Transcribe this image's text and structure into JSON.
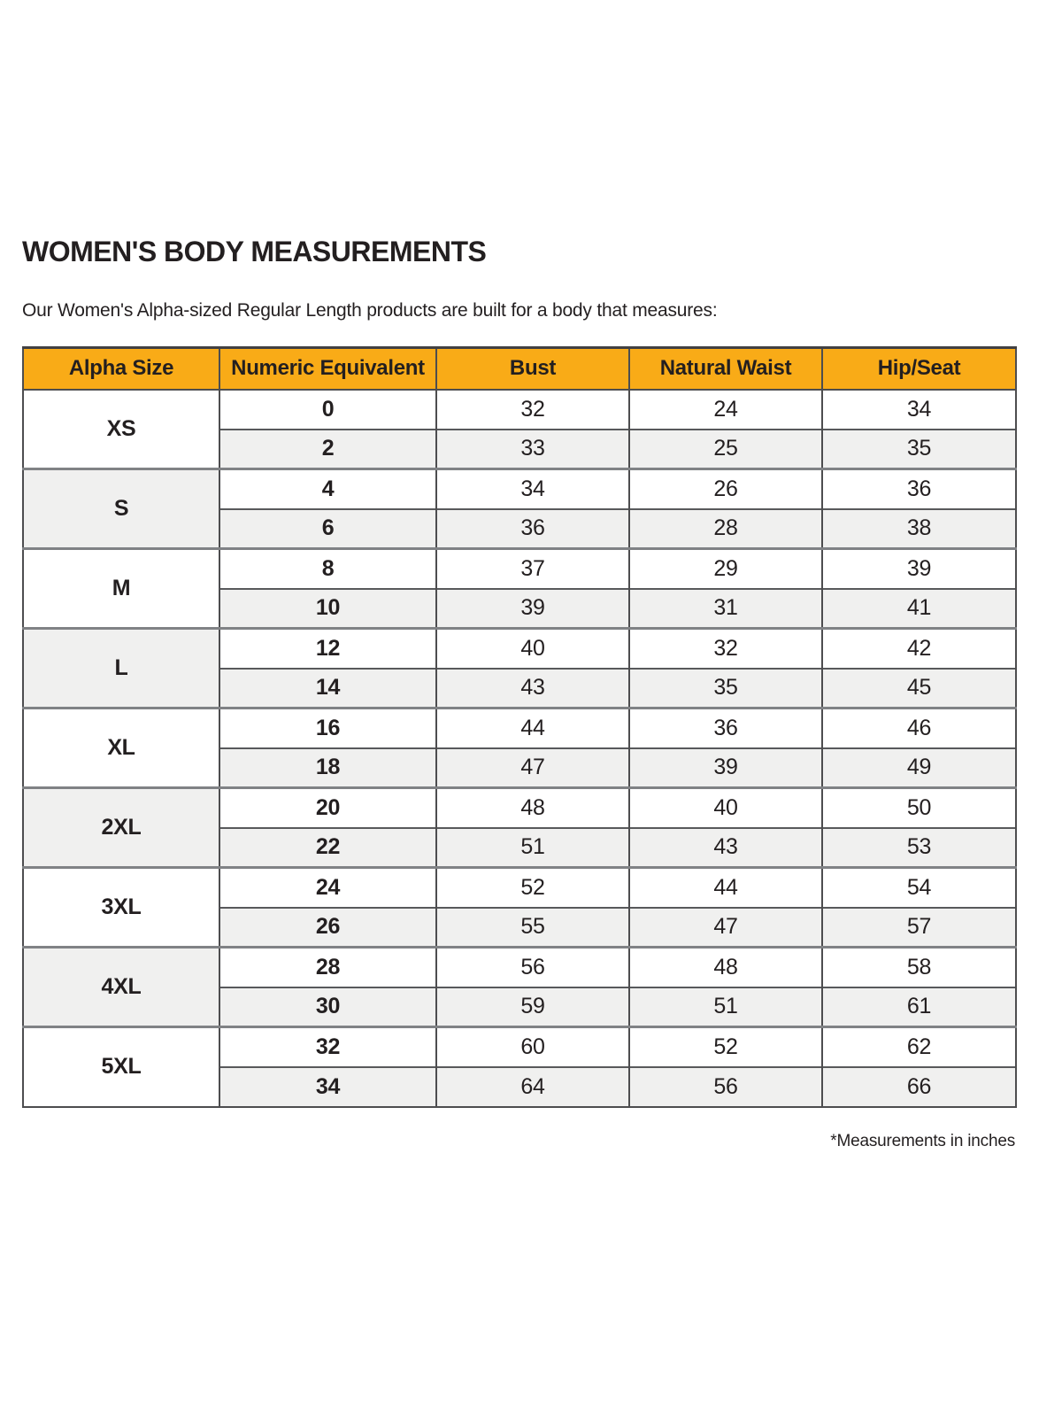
{
  "page": {
    "title": "WOMEN'S BODY MEASUREMENTS",
    "subtitle": "Our Women's Alpha-sized Regular Length products are built for a body that measures:",
    "footnote": "*Measurements in inches"
  },
  "colors": {
    "header_bg": "#F9AB17",
    "alt_row_bg": "#F0F0EF",
    "border": "#4D4D4F",
    "text": "#231F20"
  },
  "table": {
    "columns": [
      "Alpha Size",
      "Numeric Equivalent",
      "Bust",
      "Natural Waist",
      "Hip/Seat"
    ],
    "groups": [
      {
        "alpha": "XS",
        "rows": [
          {
            "numeric": "0",
            "bust": "32",
            "waist": "24",
            "hip": "34"
          },
          {
            "numeric": "2",
            "bust": "33",
            "waist": "25",
            "hip": "35"
          }
        ]
      },
      {
        "alpha": "S",
        "rows": [
          {
            "numeric": "4",
            "bust": "34",
            "waist": "26",
            "hip": "36"
          },
          {
            "numeric": "6",
            "bust": "36",
            "waist": "28",
            "hip": "38"
          }
        ]
      },
      {
        "alpha": "M",
        "rows": [
          {
            "numeric": "8",
            "bust": "37",
            "waist": "29",
            "hip": "39"
          },
          {
            "numeric": "10",
            "bust": "39",
            "waist": "31",
            "hip": "41"
          }
        ]
      },
      {
        "alpha": "L",
        "rows": [
          {
            "numeric": "12",
            "bust": "40",
            "waist": "32",
            "hip": "42"
          },
          {
            "numeric": "14",
            "bust": "43",
            "waist": "35",
            "hip": "45"
          }
        ]
      },
      {
        "alpha": "XL",
        "rows": [
          {
            "numeric": "16",
            "bust": "44",
            "waist": "36",
            "hip": "46"
          },
          {
            "numeric": "18",
            "bust": "47",
            "waist": "39",
            "hip": "49"
          }
        ]
      },
      {
        "alpha": "2XL",
        "rows": [
          {
            "numeric": "20",
            "bust": "48",
            "waist": "40",
            "hip": "50"
          },
          {
            "numeric": "22",
            "bust": "51",
            "waist": "43",
            "hip": "53"
          }
        ]
      },
      {
        "alpha": "3XL",
        "rows": [
          {
            "numeric": "24",
            "bust": "52",
            "waist": "44",
            "hip": "54"
          },
          {
            "numeric": "26",
            "bust": "55",
            "waist": "47",
            "hip": "57"
          }
        ]
      },
      {
        "alpha": "4XL",
        "rows": [
          {
            "numeric": "28",
            "bust": "56",
            "waist": "48",
            "hip": "58"
          },
          {
            "numeric": "30",
            "bust": "59",
            "waist": "51",
            "hip": "61"
          }
        ]
      },
      {
        "alpha": "5XL",
        "rows": [
          {
            "numeric": "32",
            "bust": "60",
            "waist": "52",
            "hip": "62"
          },
          {
            "numeric": "34",
            "bust": "64",
            "waist": "56",
            "hip": "66"
          }
        ]
      }
    ]
  },
  "chart_data": {
    "type": "table",
    "title": "WOMEN'S BODY MEASUREMENTS",
    "columns": [
      "Alpha Size",
      "Numeric Equivalent",
      "Bust",
      "Natural Waist",
      "Hip/Seat"
    ],
    "rows": [
      [
        "XS",
        "0",
        "32",
        "24",
        "34"
      ],
      [
        "XS",
        "2",
        "33",
        "25",
        "35"
      ],
      [
        "S",
        "4",
        "34",
        "26",
        "36"
      ],
      [
        "S",
        "6",
        "36",
        "28",
        "38"
      ],
      [
        "M",
        "8",
        "37",
        "29",
        "39"
      ],
      [
        "M",
        "10",
        "39",
        "31",
        "41"
      ],
      [
        "L",
        "12",
        "40",
        "32",
        "42"
      ],
      [
        "L",
        "14",
        "43",
        "35",
        "45"
      ],
      [
        "XL",
        "16",
        "44",
        "36",
        "46"
      ],
      [
        "XL",
        "18",
        "47",
        "39",
        "49"
      ],
      [
        "2XL",
        "20",
        "48",
        "40",
        "50"
      ],
      [
        "2XL",
        "22",
        "51",
        "43",
        "53"
      ],
      [
        "3XL",
        "24",
        "52",
        "44",
        "54"
      ],
      [
        "3XL",
        "26",
        "55",
        "47",
        "57"
      ],
      [
        "4XL",
        "28",
        "56",
        "48",
        "58"
      ],
      [
        "4XL",
        "30",
        "59",
        "51",
        "61"
      ],
      [
        "5XL",
        "32",
        "60",
        "52",
        "62"
      ],
      [
        "5XL",
        "34",
        "64",
        "56",
        "66"
      ]
    ],
    "units_note": "*Measurements in inches"
  }
}
